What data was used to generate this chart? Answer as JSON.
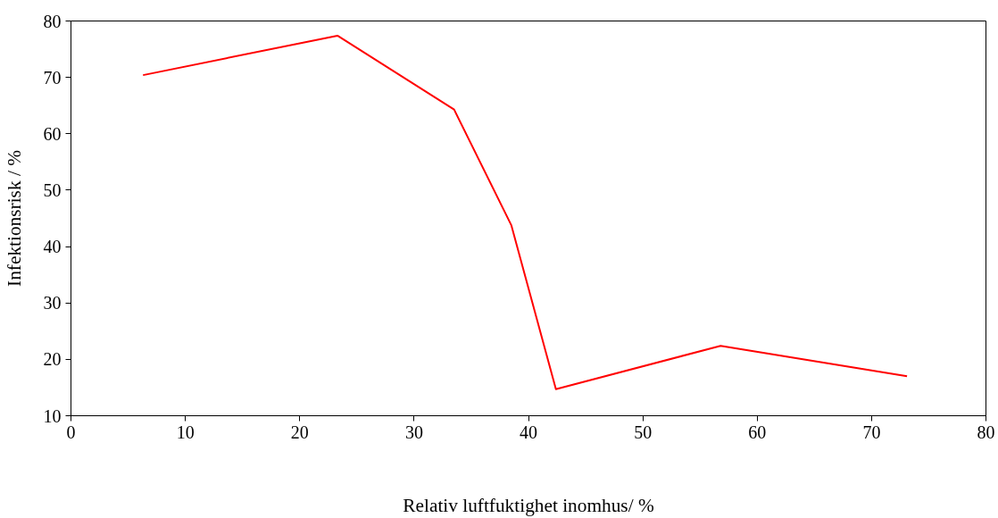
{
  "chart_data": {
    "type": "line",
    "xlabel": "Relativ luftfuktighet inomhus/ %",
    "ylabel": "Infektionsrisk / %",
    "x": [
      6.3,
      23.3,
      33.5,
      38.5,
      42.4,
      56.8,
      73.1
    ],
    "series": [
      {
        "color": "#ff0000",
        "values": [
          70.4,
          77.4,
          64.3,
          43.8,
          14.7,
          22.4,
          17.0
        ]
      }
    ],
    "xlim": [
      0,
      80
    ],
    "xticks": [
      0,
      10,
      20,
      30,
      40,
      50,
      60,
      70,
      80
    ],
    "ylim": [
      10,
      80
    ],
    "yticks": [
      10,
      20,
      30,
      40,
      50,
      60,
      70,
      80
    ],
    "grid": false,
    "marker": "none",
    "line_style": "solid"
  }
}
